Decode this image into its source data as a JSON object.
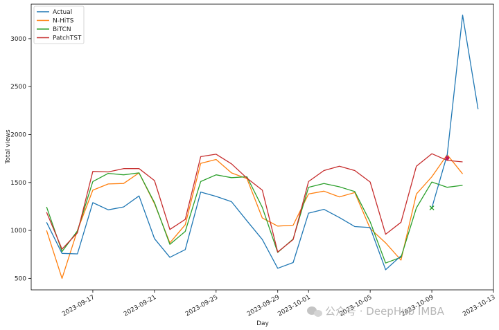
{
  "chart_data": {
    "type": "line",
    "xlabel": "Day",
    "ylabel": "Total views",
    "ylim": [
      380,
      3360
    ],
    "xlim": [
      "2023-09-13",
      "2023-10-13"
    ],
    "yticks": [
      500,
      1000,
      1500,
      2000,
      2500,
      3000
    ],
    "xticks": [
      "2023-09-17",
      "2023-09-21",
      "2023-09-25",
      "2023-09-29",
      "2023-10-01",
      "2023-10-05",
      "2023-10-09",
      "2023-10-13"
    ],
    "grid": false,
    "legend_position": "top-left",
    "x": [
      "2023-09-14",
      "2023-09-15",
      "2023-09-16",
      "2023-09-17",
      "2023-09-18",
      "2023-09-19",
      "2023-09-20",
      "2023-09-21",
      "2023-09-22",
      "2023-09-23",
      "2023-09-24",
      "2023-09-25",
      "2023-09-26",
      "2023-09-27",
      "2023-09-28",
      "2023-09-29",
      "2023-09-30",
      "2023-10-01",
      "2023-10-02",
      "2023-10-03",
      "2023-10-04",
      "2023-10-05",
      "2023-10-06",
      "2023-10-07",
      "2023-10-08",
      "2023-10-09",
      "2023-10-10",
      "2023-10-11",
      "2023-10-12"
    ],
    "series": [
      {
        "name": "Actual",
        "color": "#1f77b4",
        "values": [
          1085,
          760,
          755,
          1290,
          1215,
          1245,
          1360,
          915,
          720,
          800,
          1400,
          1355,
          1300,
          1100,
          905,
          605,
          665,
          1180,
          1220,
          1135,
          1040,
          1030,
          590,
          735,
          null,
          null,
          null,
          null,
          null
        ]
      },
      {
        "name": "N-HiTS",
        "color": "#ff7f0e",
        "values": [
          1000,
          500,
          1000,
          1420,
          1485,
          1490,
          1600,
          1280,
          870,
          1060,
          1700,
          1740,
          1600,
          1540,
          1130,
          1045,
          1055,
          1380,
          1410,
          1350,
          1395,
          1020,
          870,
          690,
          1380,
          1560,
          1790,
          1590,
          null
        ]
      },
      {
        "name": "BiTCN",
        "color": "#2ca02c",
        "values": [
          1245,
          780,
          995,
          1510,
          1595,
          1580,
          1600,
          1290,
          855,
          990,
          1510,
          1580,
          1550,
          1560,
          1240,
          770,
          910,
          1450,
          1490,
          1455,
          1405,
          1090,
          660,
          720,
          1235,
          1505,
          1450,
          1470,
          null
        ]
      },
      {
        "name": "PatchTST",
        "color": "#c62d2d",
        "values": [
          1190,
          805,
          975,
          1615,
          1610,
          1645,
          1645,
          1520,
          1010,
          1115,
          1770,
          1795,
          1695,
          1545,
          1420,
          775,
          905,
          1510,
          1625,
          1670,
          1625,
          1505,
          960,
          1085,
          1670,
          1800,
          1730,
          1715,
          null
        ]
      }
    ],
    "actual_tail": {
      "x": [
        "2023-10-09",
        "2023-10-10",
        "2023-10-11",
        "2023-10-12"
      ],
      "values": [
        1235,
        1790,
        3245,
        2265
      ]
    },
    "markers": [
      {
        "x": "2023-10-09",
        "y": 1235,
        "symbol": "x",
        "color": "#2ca02c"
      },
      {
        "x": "2023-10-10",
        "y": 1755,
        "symbol": "circle",
        "color": "#c2185b"
      }
    ]
  },
  "watermark_text": "公众号 · DeepHub IMBA"
}
